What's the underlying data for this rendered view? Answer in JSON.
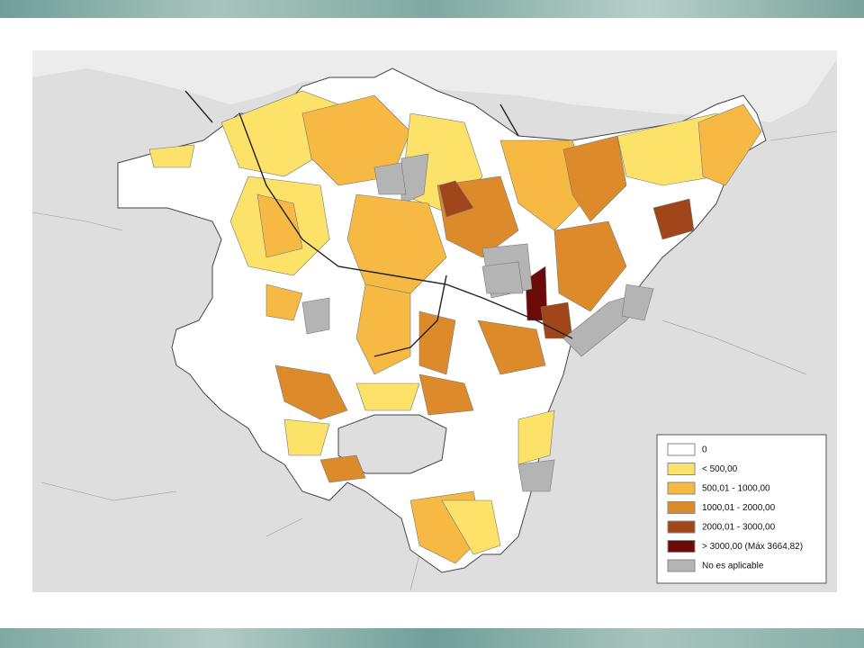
{
  "legend": {
    "items": [
      {
        "label": "0",
        "color": "#ffffff"
      },
      {
        "label": "< 500,00",
        "color": "#fde26a"
      },
      {
        "label": "500,01 - 1000,00",
        "color": "#f5b944"
      },
      {
        "label": "1000,01 - 2000,00",
        "color": "#dc8a2a"
      },
      {
        "label": "2000,01 - 3000,00",
        "color": "#a0461a"
      },
      {
        "label": "> 3000,00 (Máx 3664,82)",
        "color": "#6b0a08"
      },
      {
        "label": "No es aplicable",
        "color": "#b4b4b4"
      }
    ]
  }
}
